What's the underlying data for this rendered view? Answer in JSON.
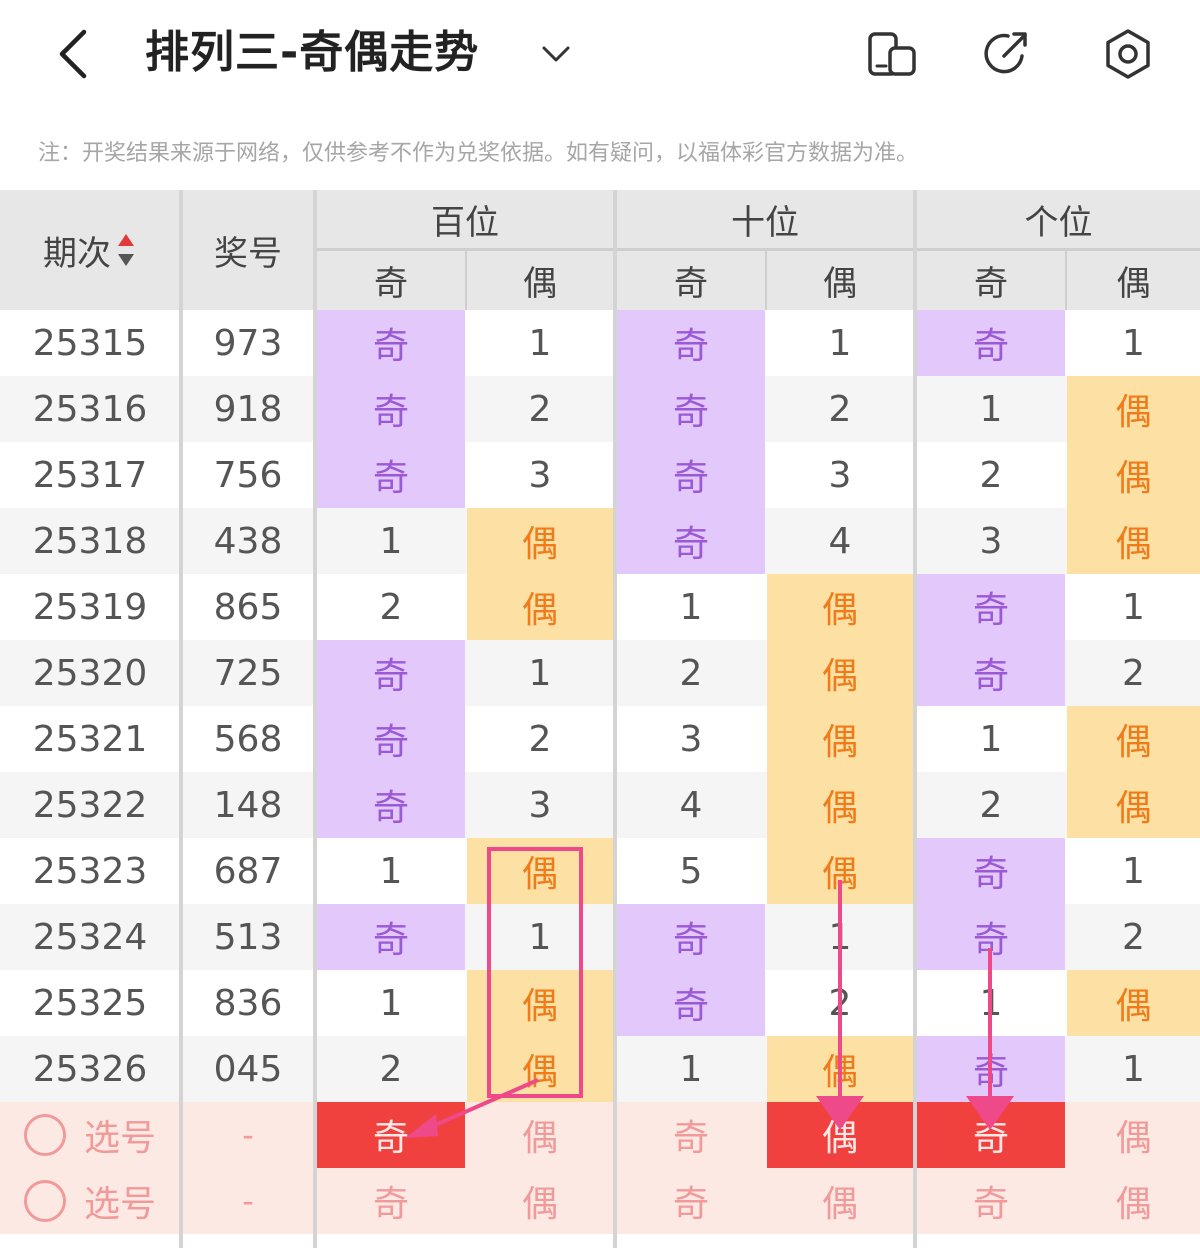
{
  "header": {
    "title": "排列三-奇偶走势",
    "back_icon": "chevron-left-icon",
    "dropdown_icon": "chevron-down-icon",
    "actions": [
      "layout-toggle-icon",
      "share-icon",
      "settings-icon"
    ]
  },
  "note": "注：开奖结果来源于网络，仅供参考不作为兑奖依据。如有疑问，以福体彩官方数据为准。",
  "table": {
    "col_issue": "期次",
    "col_number": "奖号",
    "groups": [
      "百位",
      "十位",
      "个位"
    ],
    "sub_odd": "奇",
    "sub_even": "偶",
    "rows": [
      {
        "issue": "25315",
        "number": "973",
        "cells": [
          [
            "奇",
            "o"
          ],
          [
            "1",
            "p"
          ],
          [
            "奇",
            "o"
          ],
          [
            "1",
            "p"
          ],
          [
            "奇",
            "o"
          ],
          [
            "1",
            "p"
          ]
        ]
      },
      {
        "issue": "25316",
        "number": "918",
        "cells": [
          [
            "奇",
            "o"
          ],
          [
            "2",
            "p"
          ],
          [
            "奇",
            "o"
          ],
          [
            "2",
            "p"
          ],
          [
            "1",
            "p"
          ],
          [
            "偶",
            "e"
          ]
        ]
      },
      {
        "issue": "25317",
        "number": "756",
        "cells": [
          [
            "奇",
            "o"
          ],
          [
            "3",
            "p"
          ],
          [
            "奇",
            "o"
          ],
          [
            "3",
            "p"
          ],
          [
            "2",
            "p"
          ],
          [
            "偶",
            "e"
          ]
        ]
      },
      {
        "issue": "25318",
        "number": "438",
        "cells": [
          [
            "1",
            "p"
          ],
          [
            "偶",
            "e"
          ],
          [
            "奇",
            "o"
          ],
          [
            "4",
            "p"
          ],
          [
            "3",
            "p"
          ],
          [
            "偶",
            "e"
          ]
        ]
      },
      {
        "issue": "25319",
        "number": "865",
        "cells": [
          [
            "2",
            "p"
          ],
          [
            "偶",
            "e"
          ],
          [
            "1",
            "p"
          ],
          [
            "偶",
            "e"
          ],
          [
            "奇",
            "o"
          ],
          [
            "1",
            "p"
          ]
        ]
      },
      {
        "issue": "25320",
        "number": "725",
        "cells": [
          [
            "奇",
            "o"
          ],
          [
            "1",
            "p"
          ],
          [
            "2",
            "p"
          ],
          [
            "偶",
            "e"
          ],
          [
            "奇",
            "o"
          ],
          [
            "2",
            "p"
          ]
        ]
      },
      {
        "issue": "25321",
        "number": "568",
        "cells": [
          [
            "奇",
            "o"
          ],
          [
            "2",
            "p"
          ],
          [
            "3",
            "p"
          ],
          [
            "偶",
            "e"
          ],
          [
            "1",
            "p"
          ],
          [
            "偶",
            "e"
          ]
        ]
      },
      {
        "issue": "25322",
        "number": "148",
        "cells": [
          [
            "奇",
            "o"
          ],
          [
            "3",
            "p"
          ],
          [
            "4",
            "p"
          ],
          [
            "偶",
            "e"
          ],
          [
            "2",
            "p"
          ],
          [
            "偶",
            "e"
          ]
        ]
      },
      {
        "issue": "25323",
        "number": "687",
        "cells": [
          [
            "1",
            "p"
          ],
          [
            "偶",
            "e"
          ],
          [
            "5",
            "p"
          ],
          [
            "偶",
            "e"
          ],
          [
            "奇",
            "o"
          ],
          [
            "1",
            "p"
          ]
        ]
      },
      {
        "issue": "25324",
        "number": "513",
        "cells": [
          [
            "奇",
            "o"
          ],
          [
            "1",
            "p"
          ],
          [
            "奇",
            "o"
          ],
          [
            "1",
            "p"
          ],
          [
            "奇",
            "o"
          ],
          [
            "2",
            "p"
          ]
        ]
      },
      {
        "issue": "25325",
        "number": "836",
        "cells": [
          [
            "1",
            "p"
          ],
          [
            "偶",
            "e"
          ],
          [
            "奇",
            "o"
          ],
          [
            "2",
            "p"
          ],
          [
            "1",
            "p"
          ],
          [
            "偶",
            "e"
          ]
        ]
      },
      {
        "issue": "25326",
        "number": "045",
        "cells": [
          [
            "2",
            "p"
          ],
          [
            "偶",
            "e"
          ],
          [
            "1",
            "p"
          ],
          [
            "偶",
            "e"
          ],
          [
            "奇",
            "o"
          ],
          [
            "1",
            "p"
          ]
        ]
      }
    ],
    "pick_rows": [
      {
        "label": "选号",
        "dash": "-",
        "cells": [
          "奇",
          "偶",
          "奇",
          "偶",
          "奇",
          "偶"
        ],
        "selected": [
          true,
          false,
          false,
          true,
          true,
          false
        ]
      },
      {
        "label": "选号",
        "dash": "-",
        "cells": [
          "奇",
          "偶",
          "奇",
          "偶",
          "奇",
          "偶"
        ],
        "selected": [
          false,
          false,
          false,
          false,
          false,
          false
        ]
      }
    ]
  },
  "colors": {
    "odd_bg": "#e2c8fb",
    "odd_text": "#9b59d6",
    "even_bg": "#fde0a4",
    "even_text": "#f07b1a",
    "pick_selected": "#f0413f",
    "annotation": "#ee4a8a"
  }
}
